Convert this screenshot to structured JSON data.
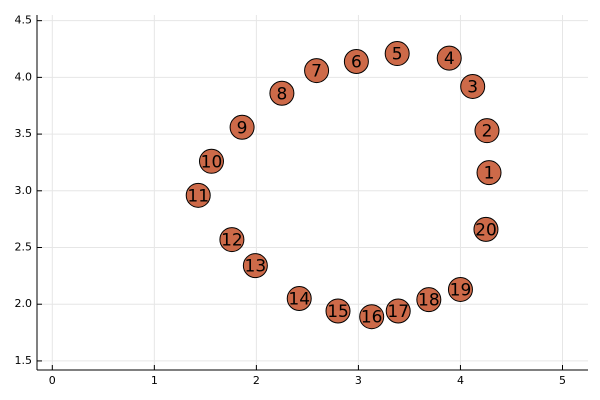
{
  "chart_data": {
    "type": "scatter",
    "x": [
      4.28,
      4.26,
      4.12,
      3.89,
      3.38,
      2.98,
      2.59,
      2.25,
      1.86,
      1.56,
      1.43,
      1.76,
      1.99,
      2.42,
      2.8,
      3.13,
      3.39,
      3.69,
      4.0,
      4.25
    ],
    "values": [
      3.16,
      3.53,
      3.92,
      4.17,
      4.21,
      4.14,
      4.06,
      3.86,
      3.56,
      3.26,
      2.96,
      2.57,
      2.34,
      2.05,
      1.94,
      1.89,
      1.94,
      2.04,
      2.13,
      2.66
    ],
    "point_labels": [
      "1",
      "2",
      "3",
      "4",
      "5",
      "6",
      "7",
      "8",
      "9",
      "10",
      "11",
      "12",
      "13",
      "14",
      "15",
      "16",
      "17",
      "18",
      "19",
      "20"
    ],
    "color": "#cd6a49",
    "xlim": [
      -0.15,
      5.25
    ],
    "ylim": [
      1.42,
      4.55
    ],
    "xticks": [
      0,
      1,
      2,
      3,
      4,
      5
    ],
    "yticks": [
      {
        "value": 1.5,
        "label": "1.5"
      },
      {
        "value": 2.0,
        "label": "2.0"
      },
      {
        "value": 2.5,
        "label": "2.5"
      },
      {
        "value": 3.0,
        "label": "3.0"
      },
      {
        "value": 3.5,
        "label": "3.5"
      },
      {
        "value": 4.0,
        "label": "4.0"
      },
      {
        "value": 4.5,
        "label": "4.5"
      }
    ],
    "grid": true
  }
}
